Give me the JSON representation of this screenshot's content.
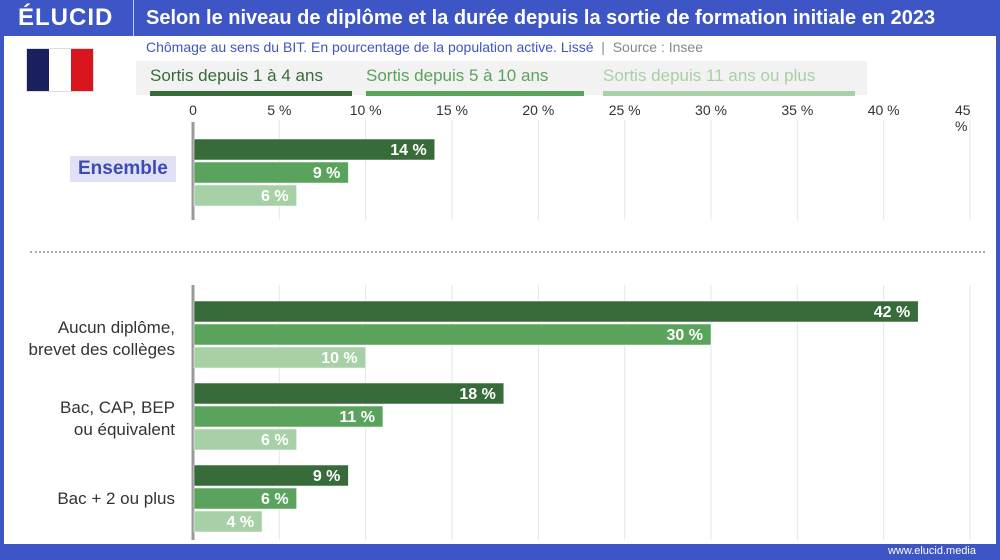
{
  "header": {
    "logo": "ÉLUCID",
    "title": "Selon le niveau de diplôme et la durée depuis la sortie de formation initiale en 2023"
  },
  "subtitle": "Chômage au sens du BIT. En pourcentage de la population active. Lissé",
  "source": "Source : Insee",
  "footer": "www.elucid.media",
  "colors": {
    "brand": "#3d55c5",
    "flag_blue": "#1a1f5e",
    "flag_white": "#ffffff",
    "flag_red": "#d8141c"
  },
  "chart_data": {
    "type": "bar",
    "orientation": "horizontal",
    "xlim": [
      0,
      45
    ],
    "ticks": [
      "0",
      "5 %",
      "10 %",
      "15 %",
      "20 %",
      "25 %",
      "30 %",
      "35 %",
      "40 %",
      "45 %"
    ],
    "grid": true,
    "legend_placement": "top",
    "categories": [
      "Ensemble",
      "Aucun diplôme,\nbrevet des collèges",
      "Bac, CAP, BEP\nou équivalent",
      "Bac + 2 ou plus"
    ],
    "category_lines": [
      [
        "Ensemble"
      ],
      [
        "Aucun diplôme,",
        "brevet des collèges"
      ],
      [
        "Bac, CAP, BEP",
        "ou équivalent"
      ],
      [
        "Bac + 2 ou plus"
      ]
    ],
    "series": [
      {
        "name": "Sortis depuis 1 à 4 ans",
        "color": "#386b3a",
        "values": [
          14,
          42,
          18,
          9
        ]
      },
      {
        "name": "Sortis depuis 5 à 10 ans",
        "color": "#5aa35c",
        "values": [
          9,
          30,
          11,
          6
        ]
      },
      {
        "name": "Sortis depuis 11 ans ou plus",
        "color": "#a8d0a6",
        "values": [
          6,
          10,
          6,
          4
        ]
      }
    ]
  }
}
